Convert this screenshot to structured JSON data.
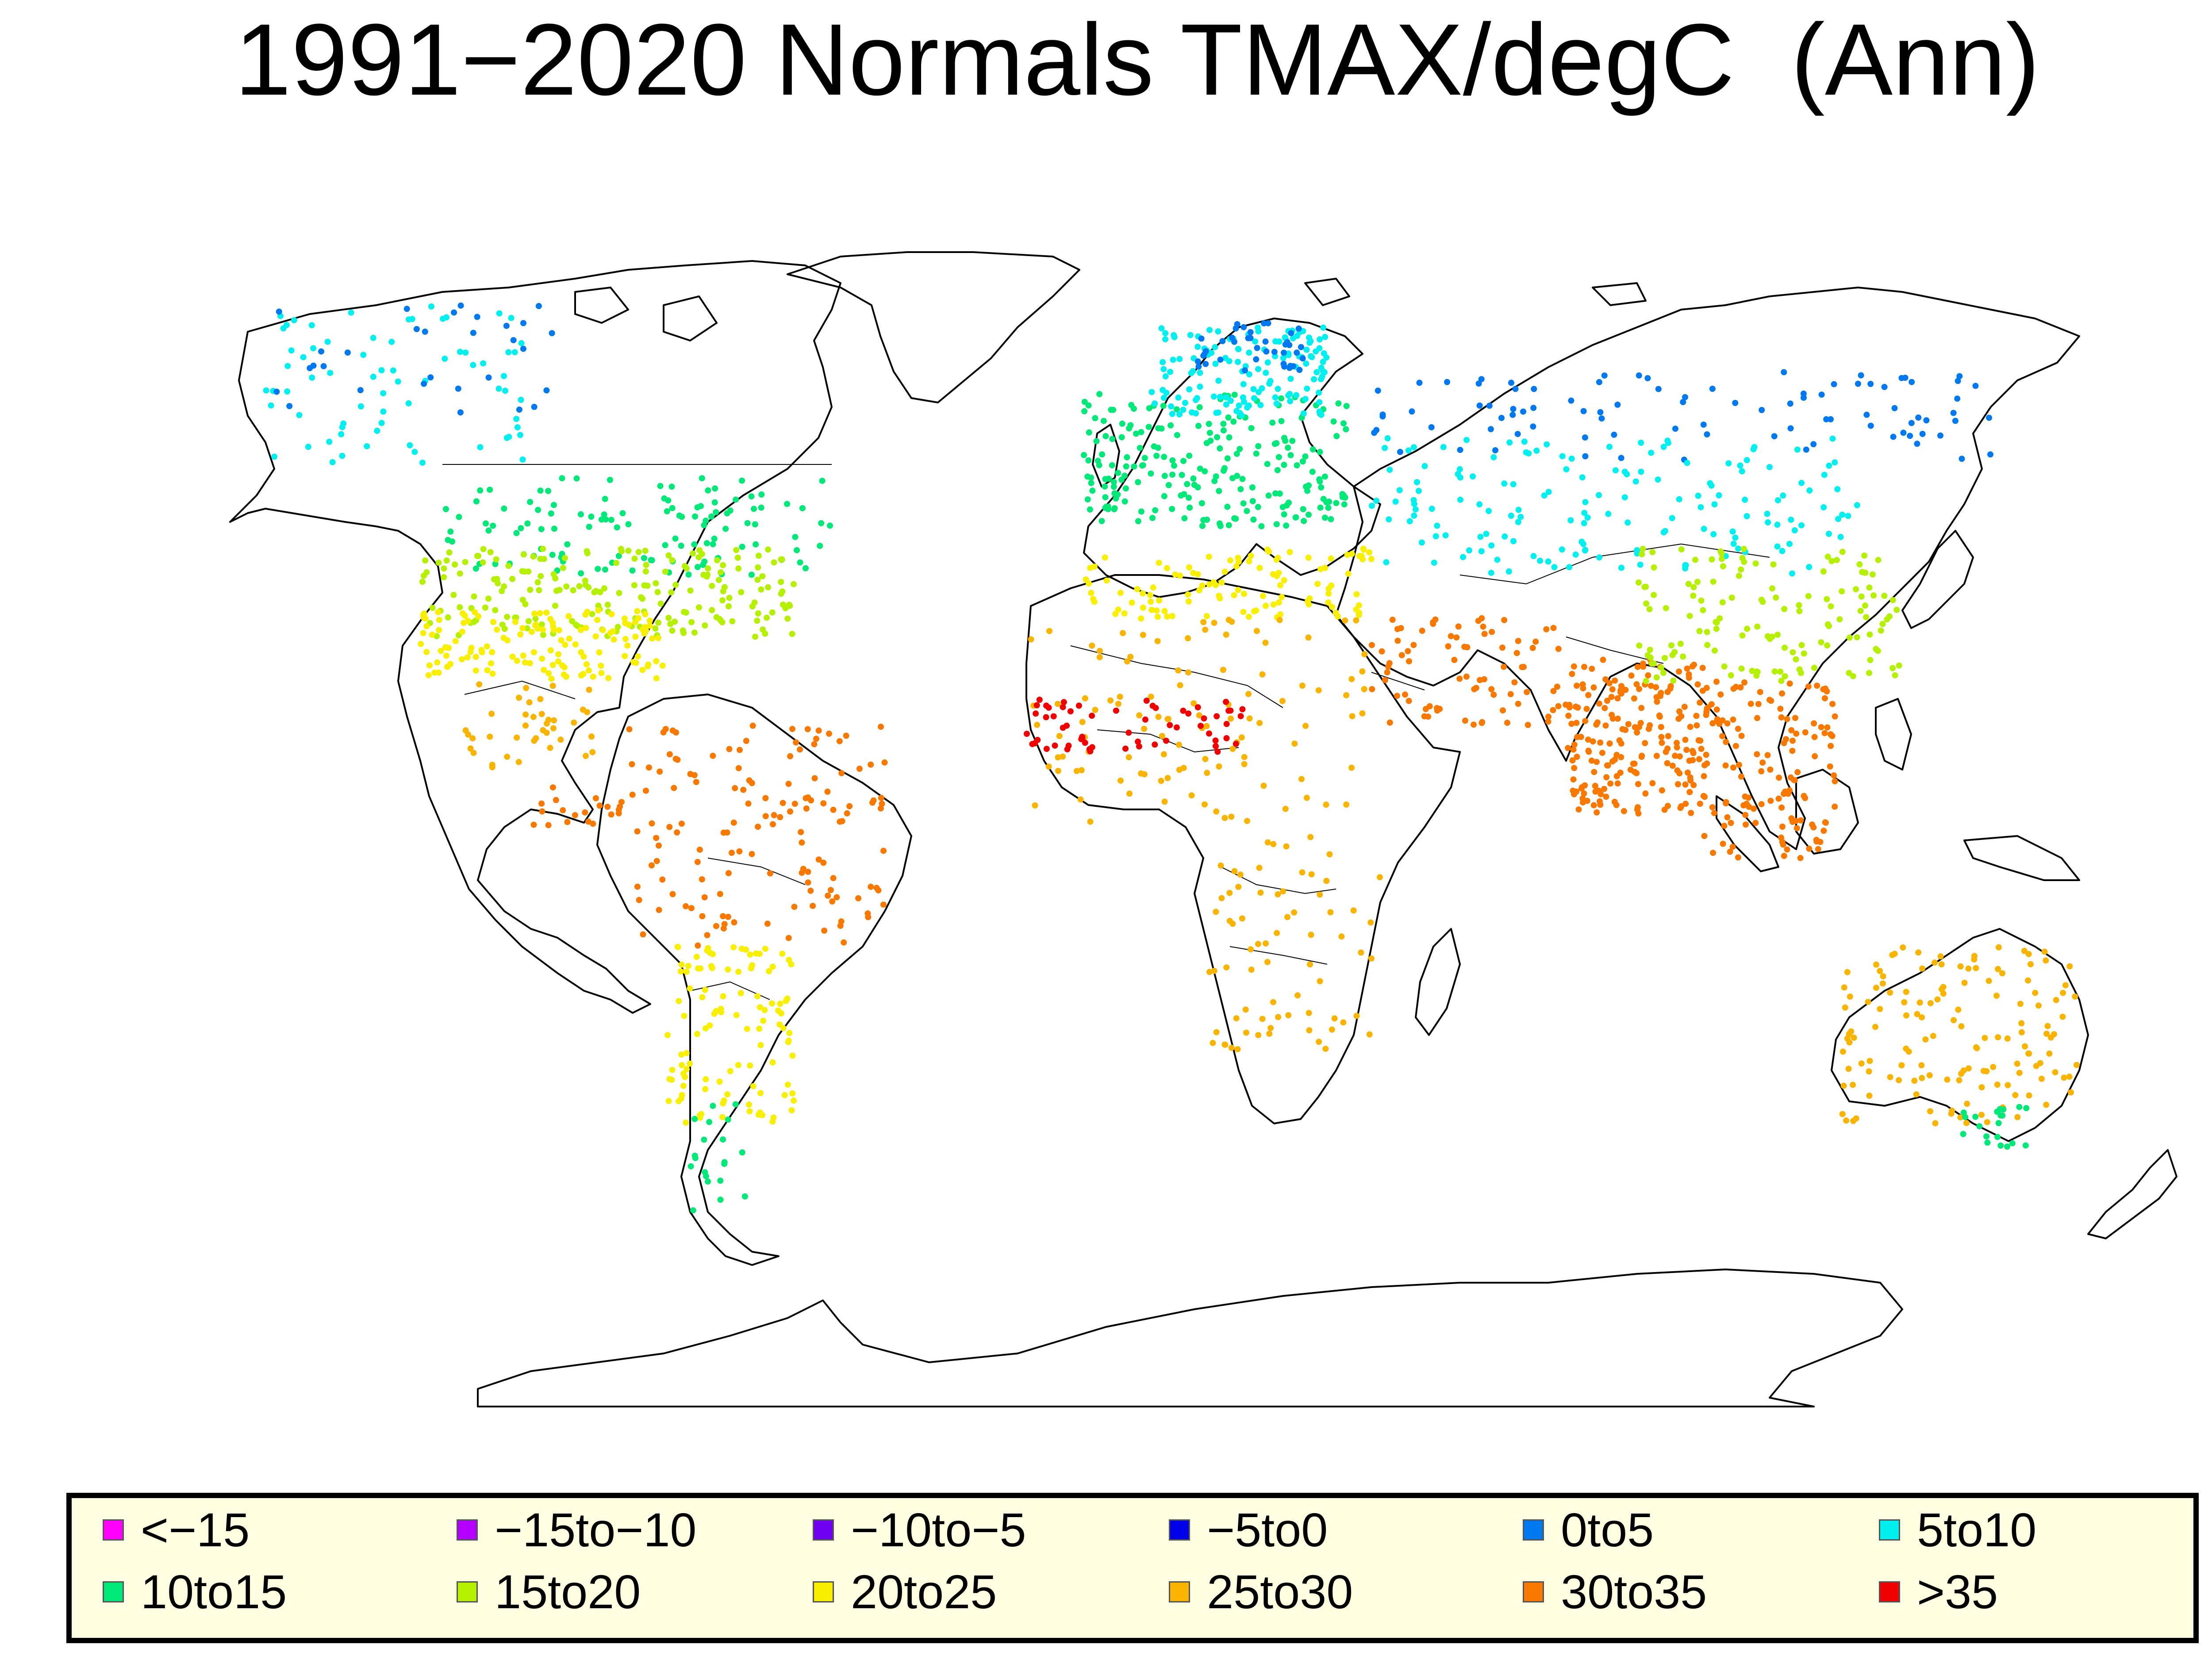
{
  "title": "1991−2020 Normals TMAX/degC  (Ann)",
  "legend": {
    "items": [
      {
        "label": "<−15",
        "color": "#ff00ff"
      },
      {
        "label": "−15to−10",
        "color": "#b400ff"
      },
      {
        "label": "−10to−5",
        "color": "#7000f0"
      },
      {
        "label": "−5to0",
        "color": "#0000e8"
      },
      {
        "label": "0to5",
        "color": "#0078f0"
      },
      {
        "label": "5to10",
        "color": "#00f0f0"
      },
      {
        "label": "10to15",
        "color": "#00e878"
      },
      {
        "label": "15to20",
        "color": "#b4f000"
      },
      {
        "label": "20to25",
        "color": "#f8f000"
      },
      {
        "label": "25to30",
        "color": "#f8b400"
      },
      {
        "label": "30to35",
        "color": "#f87800"
      },
      {
        "label": ">35",
        "color": "#f00000"
      }
    ]
  }
}
